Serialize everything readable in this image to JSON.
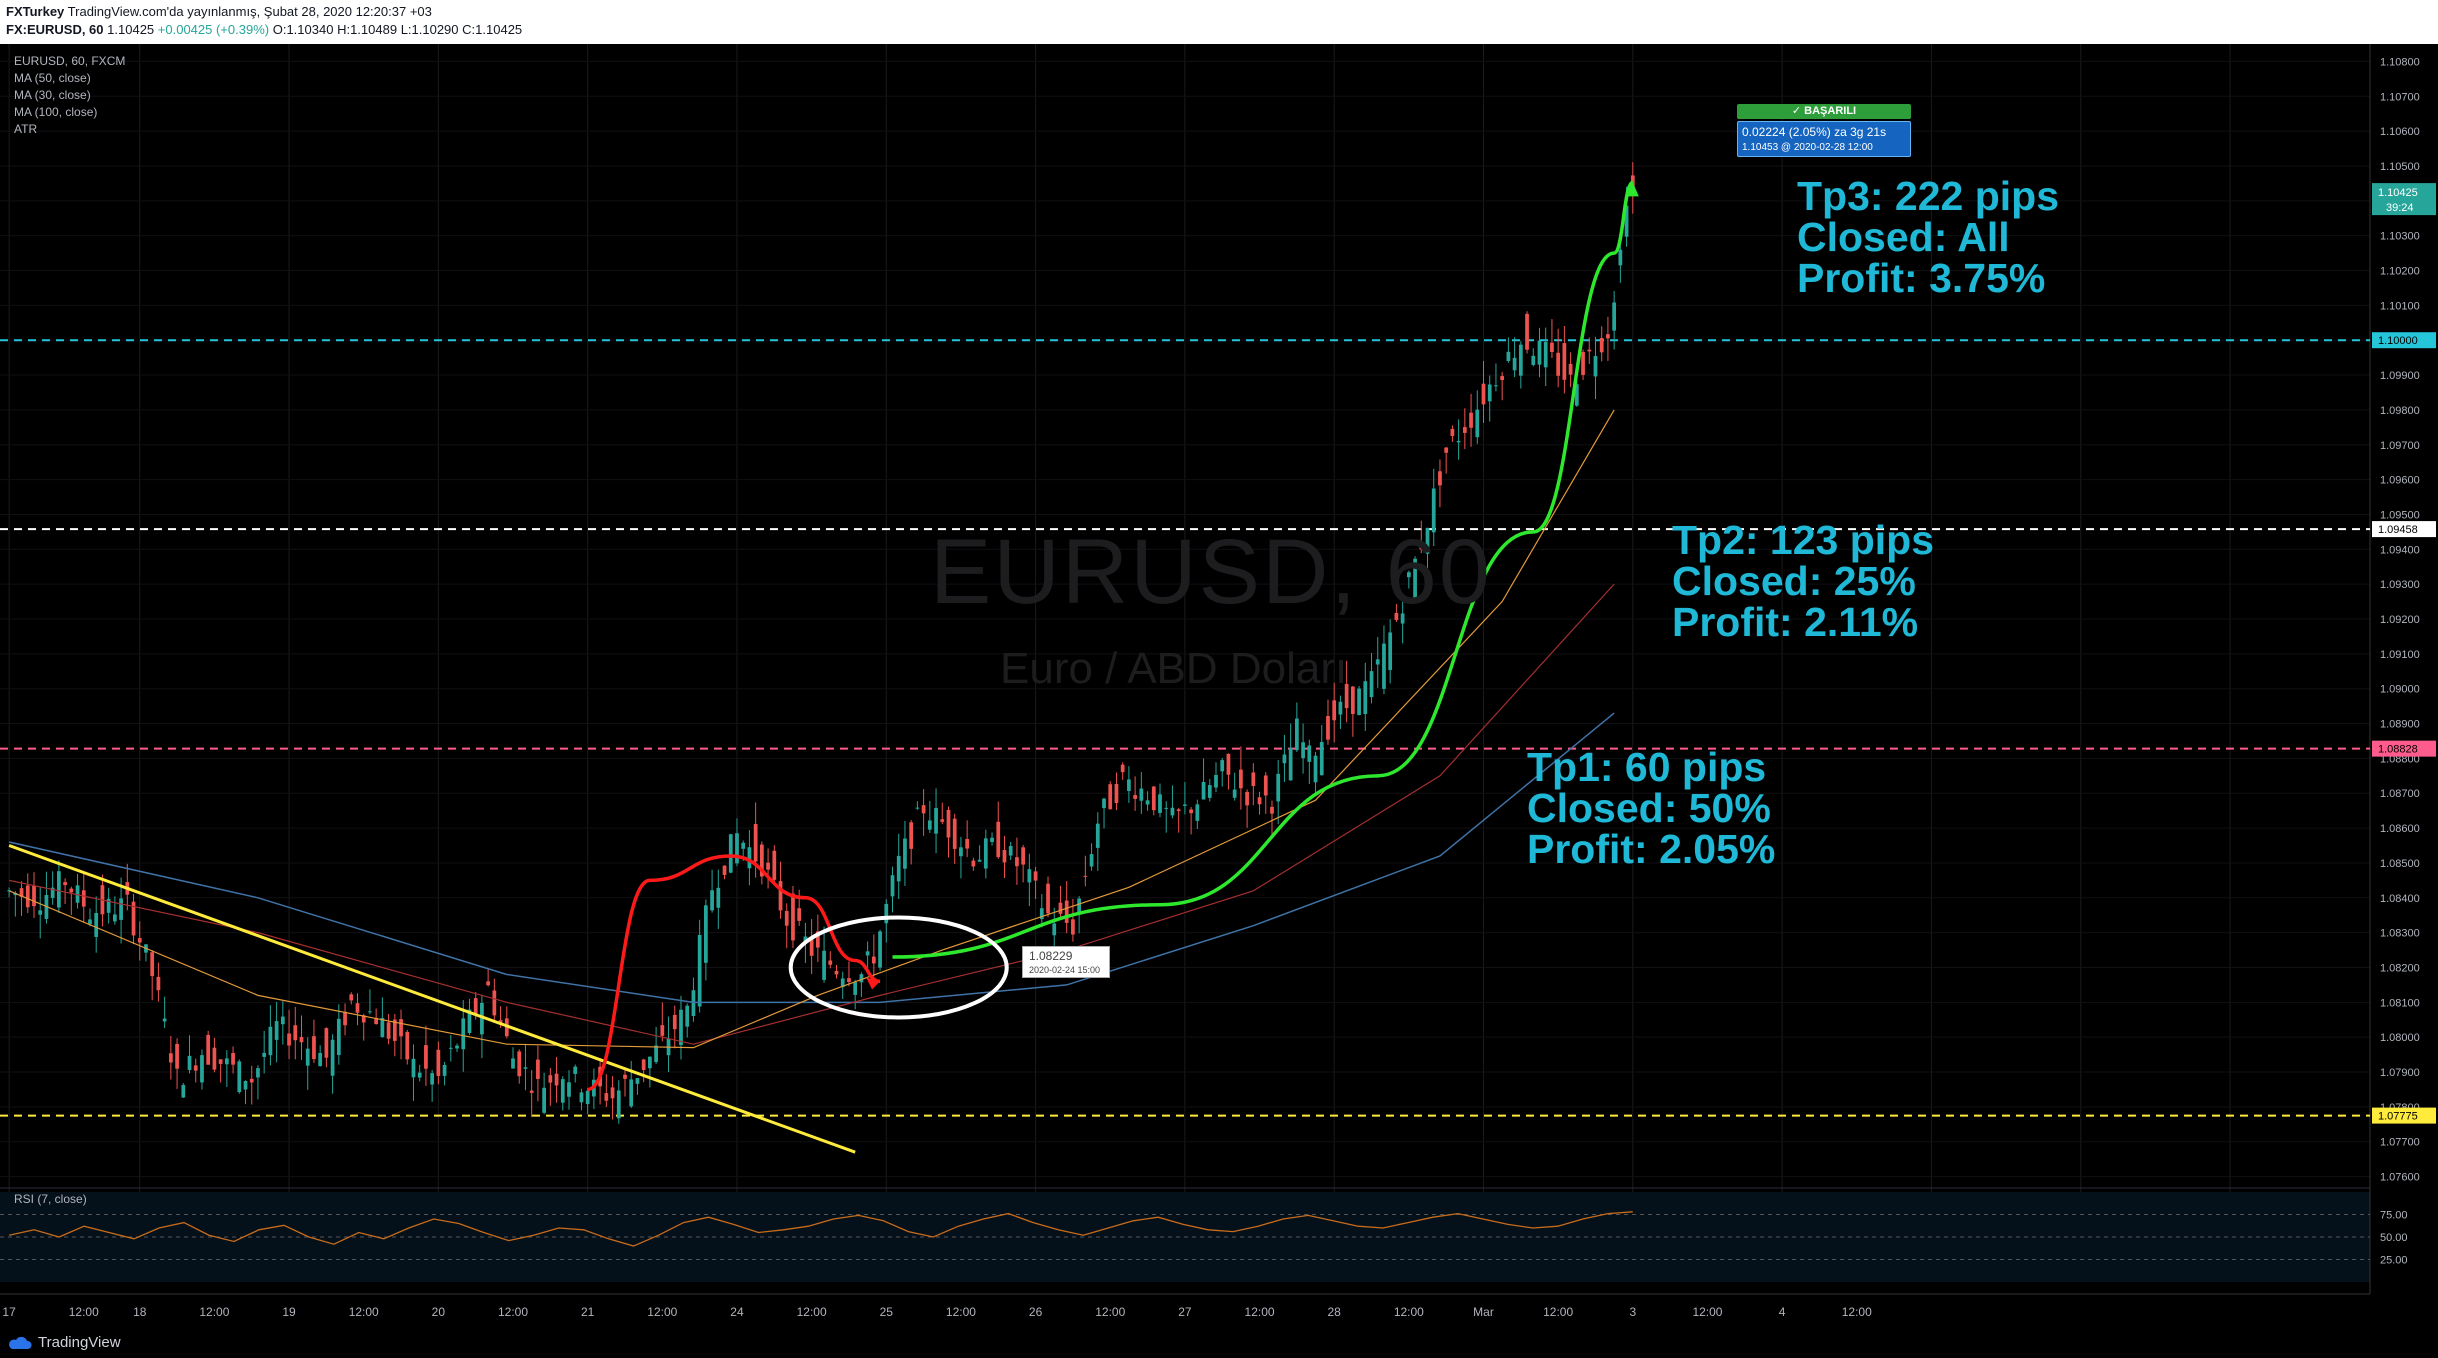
{
  "header": {
    "author": "FXTurkey",
    "published": "TradingView.com'da yayınlanmış, Şubat 28, 2020 12:20:37 +03",
    "symbol": "FX:EURUSD, 60",
    "last": "1.10425",
    "change": "+0.00425 (+0.39%)",
    "ohlc": {
      "o": "O:1.10340",
      "h": "H:1.10489",
      "l": "L:1.10290",
      "c": "C:1.10425"
    }
  },
  "legend": {
    "symbol": "EURUSD, 60, FXCM",
    "indicators": [
      "MA (50, close)",
      "MA (30, close)",
      "MA (100, close)",
      "ATR"
    ]
  },
  "watermark": {
    "ticker": "EURUSD, 60",
    "description": "Euro / ABD Doları"
  },
  "annotations": {
    "tp3": [
      "Tp3: 222 pips",
      "Closed: All",
      "Profit: 3.75%"
    ],
    "tp2": [
      "Tp2: 123 pips",
      "Closed: 25%",
      "Profit: 2.11%"
    ],
    "tp1": [
      "Tp1: 60 pips",
      "Closed: 50%",
      "Profit: 2.05%"
    ],
    "success_badge": "✓ BAŞARILI",
    "measure_line1": "0.02224 (2.05%) za 3g 21s",
    "measure_line2": "1.10453 @ 2020-02-28  12:00",
    "tooltip_price": "1.08229",
    "tooltip_time": "2020-02-24 15:00"
  },
  "rsi": {
    "label": "RSI (7, close)",
    "ticks": [
      "75.00",
      "50.00",
      "25.00"
    ]
  },
  "footer": {
    "brand": "TradingView"
  },
  "colors": {
    "bull": "#26a69a",
    "bear": "#ef5350",
    "trendline": "#ffeb3b",
    "curve_up": "#2ee82e",
    "arc": "#ff1a1a",
    "annotation": "#1fb8d6",
    "level_tp3": "#26c6da",
    "level_tp2": "#ffffff",
    "level_entry": "#ff5c8d",
    "level_support": "#ffeb3b",
    "rsi_line": "#c86b1b",
    "ma_orange": "#e39a3a",
    "ma_red": "#a52f2f",
    "ma_blue": "#3f73a8"
  },
  "chart_data": {
    "type": "candlestick",
    "symbol": "EURUSD",
    "timeframe": "60",
    "ylim": [
      1.0755,
      1.1085
    ],
    "price_ticks": [
      "1.10800",
      "1.10700",
      "1.10600",
      "1.10500",
      "1.10400",
      "1.10300",
      "1.10200",
      "1.10100",
      "1.10000",
      "1.09900",
      "1.09800",
      "1.09700",
      "1.09600",
      "1.09500",
      "1.09400",
      "1.09300",
      "1.09200",
      "1.09100",
      "1.09000",
      "1.08900",
      "1.08800",
      "1.08700",
      "1.08600",
      "1.08500",
      "1.08400",
      "1.08300",
      "1.08200",
      "1.08100",
      "1.08000",
      "1.07900",
      "1.07800",
      "1.07700",
      "1.07600"
    ],
    "time_ticks": [
      "17",
      "12:00",
      "18",
      "12:00",
      "19",
      "12:00",
      "20",
      "12:00",
      "21",
      "12:00",
      "24",
      "12:00",
      "25",
      "12:00",
      "26",
      "12:00",
      "27",
      "12:00",
      "28",
      "12:00",
      "Mar",
      "12:00",
      "3",
      "12:00",
      "4",
      "12:00"
    ],
    "levels": [
      {
        "price": 1.1,
        "label": "1.10000"
      },
      {
        "price": 1.09458,
        "label": "1.09458"
      },
      {
        "price": 1.08828,
        "label": "1.08828"
      },
      {
        "price": 1.07775,
        "label": "1.07775"
      }
    ],
    "last_price": {
      "price": 1.10425,
      "label": "1.10425",
      "countdown": "39:24"
    },
    "close_path": [
      [
        0,
        1.0842
      ],
      [
        6,
        1.084
      ],
      [
        10,
        1.0845
      ],
      [
        14,
        1.0836
      ],
      [
        20,
        1.0838
      ],
      [
        24,
        1.0818
      ],
      [
        28,
        1.0788
      ],
      [
        32,
        1.0796
      ],
      [
        36,
        1.0792
      ],
      [
        40,
        1.0788
      ],
      [
        44,
        1.0803
      ],
      [
        48,
        1.0799
      ],
      [
        52,
        1.0794
      ],
      [
        56,
        1.081
      ],
      [
        60,
        1.0806
      ],
      [
        66,
        1.0792
      ],
      [
        70,
        1.0788
      ],
      [
        74,
        1.0802
      ],
      [
        78,
        1.0814
      ],
      [
        82,
        1.0794
      ],
      [
        86,
        1.0786
      ],
      [
        90,
        1.079
      ],
      [
        94,
        1.0786
      ],
      [
        98,
        1.0783
      ],
      [
        102,
        1.079
      ],
      [
        106,
        1.0798
      ],
      [
        110,
        1.0808
      ],
      [
        114,
        1.0843
      ],
      [
        118,
        1.0858
      ],
      [
        122,
        1.085
      ],
      [
        126,
        1.0834
      ],
      [
        130,
        1.0825
      ],
      [
        134,
        1.082
      ],
      [
        138,
        1.0818
      ],
      [
        140,
        1.0824
      ],
      [
        144,
        1.085
      ],
      [
        148,
        1.0866
      ],
      [
        152,
        1.086
      ],
      [
        156,
        1.0852
      ],
      [
        160,
        1.0855
      ],
      [
        164,
        1.0848
      ],
      [
        168,
        1.0835
      ],
      [
        172,
        1.0832
      ],
      [
        176,
        1.0862
      ],
      [
        180,
        1.0874
      ],
      [
        184,
        1.087
      ],
      [
        188,
        1.0862
      ],
      [
        192,
        1.0868
      ],
      [
        196,
        1.0876
      ],
      [
        200,
        1.087
      ],
      [
        204,
        1.0868
      ],
      [
        208,
        1.0888
      ],
      [
        210,
        1.088
      ],
      [
        214,
        1.0892
      ],
      [
        218,
        1.0898
      ],
      [
        220,
        1.0902
      ],
      [
        224,
        1.092
      ],
      [
        228,
        1.0942
      ],
      [
        232,
        1.0968
      ],
      [
        236,
        1.0978
      ],
      [
        240,
        1.099
      ],
      [
        244,
        1.1
      ],
      [
        248,
        1.0996
      ],
      [
        252,
        1.0988
      ],
      [
        256,
        1.0998
      ],
      [
        258,
        1.1003
      ],
      [
        260,
        1.1025
      ],
      [
        261,
        1.10425
      ]
    ],
    "moving_averages": {
      "ma30": [
        [
          0,
          1.0842
        ],
        [
          40,
          1.0812
        ],
        [
          80,
          1.0798
        ],
        [
          110,
          1.0797
        ],
        [
          130,
          1.0812
        ],
        [
          150,
          1.0825
        ],
        [
          180,
          1.0843
        ],
        [
          210,
          1.0868
        ],
        [
          240,
          1.0925
        ],
        [
          258,
          1.098
        ]
      ],
      "ma50": [
        [
          0,
          1.0845
        ],
        [
          40,
          1.083
        ],
        [
          80,
          1.081
        ],
        [
          110,
          1.0798
        ],
        [
          140,
          1.0812
        ],
        [
          170,
          1.0825
        ],
        [
          200,
          1.0842
        ],
        [
          230,
          1.0875
        ],
        [
          258,
          1.093
        ]
      ],
      "ma100": [
        [
          0,
          1.0856
        ],
        [
          40,
          1.084
        ],
        [
          80,
          1.0818
        ],
        [
          110,
          1.081
        ],
        [
          140,
          1.081
        ],
        [
          170,
          1.0815
        ],
        [
          200,
          1.0832
        ],
        [
          230,
          1.0852
        ],
        [
          258,
          1.0893
        ]
      ]
    },
    "drawings": {
      "trendline": [
        [
          0,
          1.0855
        ],
        [
          136,
          1.0767
        ]
      ],
      "arc": [
        [
          93,
          1.0785
        ],
        [
          103,
          1.0845
        ],
        [
          116,
          1.0852
        ],
        [
          128,
          1.084
        ],
        [
          136,
          1.0822
        ],
        [
          140,
          1.0816
        ]
      ],
      "curve_up": [
        [
          142,
          1.0823
        ],
        [
          185,
          1.0838
        ],
        [
          220,
          1.0875
        ],
        [
          245,
          1.0945
        ],
        [
          258,
          1.1025
        ],
        [
          261,
          1.10453
        ]
      ],
      "ellipse_center": [
        143,
        1.082
      ]
    },
    "rsi": [
      52,
      58,
      50,
      62,
      55,
      48,
      60,
      66,
      52,
      45,
      58,
      63,
      50,
      42,
      55,
      48,
      60,
      70,
      65,
      55,
      46,
      52,
      60,
      58,
      48,
      40,
      52,
      66,
      72,
      64,
      55,
      58,
      62,
      70,
      74,
      68,
      56,
      50,
      62,
      70,
      76,
      66,
      58,
      52,
      60,
      68,
      72,
      64,
      58,
      56,
      62,
      70,
      74,
      68,
      62,
      60,
      66,
      72,
      76,
      70,
      64,
      60,
      62,
      70,
      76,
      78
    ]
  }
}
